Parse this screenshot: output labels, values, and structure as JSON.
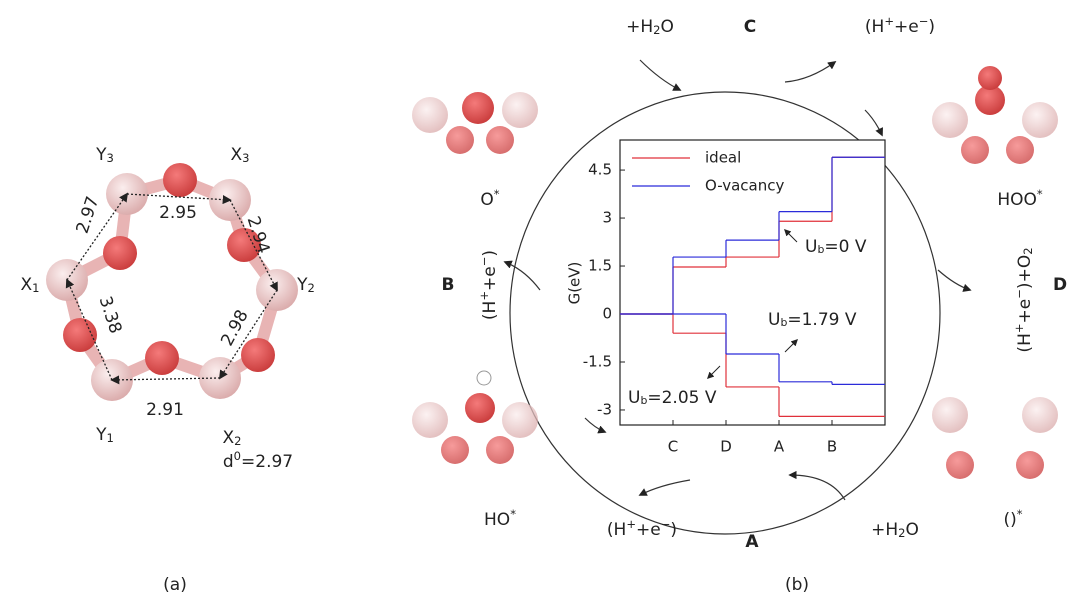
{
  "panel_a": {
    "label": "(a)",
    "atoms": [
      [
        {
          "text": "Y"
        },
        {
          "sub": "3"
        }
      ],
      [
        {
          "text": "X"
        },
        {
          "sub": "3"
        }
      ],
      [
        {
          "text": "X"
        },
        {
          "sub": "1"
        }
      ],
      [
        {
          "text": "Y"
        },
        {
          "sub": "2"
        }
      ],
      [
        {
          "text": "Y"
        },
        {
          "sub": "1"
        }
      ],
      [
        {
          "text": "X"
        },
        {
          "sub": "2"
        }
      ]
    ],
    "distances": [
      "2.97",
      "2.95",
      "2.94",
      "3.38",
      "2.98",
      "2.91"
    ],
    "d0": [
      {
        "text": "d"
      },
      {
        "sup": "0"
      },
      {
        "text": "=2.97"
      }
    ]
  },
  "panel_b": {
    "label": "(b)",
    "steps": [
      "C",
      "B",
      "D",
      "A"
    ],
    "species": [
      [
        {
          "text": "O"
        },
        {
          "sup": "*"
        }
      ],
      [
        {
          "text": "HOO"
        },
        {
          "sup": "*"
        }
      ],
      [
        {
          "text": "HO"
        },
        {
          "sup": "*"
        }
      ],
      [
        {
          "text": "()"
        },
        {
          "sup": "*"
        }
      ]
    ],
    "reactants": [
      [
        {
          "text": "+H"
        },
        {
          "sub": "2"
        },
        {
          "text": "O"
        }
      ],
      [
        {
          "text": "(H"
        },
        {
          "sup": "+"
        },
        {
          "text": "+e"
        },
        {
          "sup": "−"
        },
        {
          "text": ")"
        }
      ],
      [
        {
          "text": "(H"
        },
        {
          "sup": "+"
        },
        {
          "text": "+e"
        },
        {
          "sup": "−"
        },
        {
          "text": ")"
        }
      ],
      [
        {
          "text": "(H"
        },
        {
          "sup": "+"
        },
        {
          "text": "+e"
        },
        {
          "sup": "−"
        },
        {
          "text": ")+O"
        },
        {
          "sub": "2"
        }
      ],
      [
        {
          "text": "(H"
        },
        {
          "sup": "+"
        },
        {
          "text": "+e"
        },
        {
          "sup": "−"
        },
        {
          "text": ")"
        }
      ],
      [
        {
          "text": "+H"
        },
        {
          "sub": "2"
        },
        {
          "text": "O"
        }
      ]
    ]
  },
  "chart_data": {
    "type": "step",
    "ylabel": "G(eV)",
    "x": [
      0,
      1,
      2,
      3,
      4
    ],
    "xlim": [
      0,
      5
    ],
    "xticks": [
      {
        "value": 1,
        "label": "C"
      },
      {
        "value": 2,
        "label": "D"
      },
      {
        "value": 3,
        "label": "A"
      },
      {
        "value": 4,
        "label": "B"
      }
    ],
    "ylim": [
      -3.47,
      5.44
    ],
    "yticks": [
      4.5,
      3,
      1.5,
      0,
      -1.5,
      -3
    ],
    "series": [
      {
        "name": "ideal",
        "color": "#e0303a",
        "values": [
          0,
          1.47,
          1.78,
          2.9,
          4.9
        ]
      },
      {
        "name": "O-vacancy",
        "color": "#2b2bd9",
        "values": [
          0,
          1.78,
          2.31,
          3.2,
          4.9
        ]
      }
    ],
    "shifted_series": [
      {
        "color": "#e0303a",
        "values": [
          0,
          -0.6,
          -2.28,
          -3.2,
          -3.2
        ]
      },
      {
        "color": "#2b2bd9",
        "values": [
          0,
          0,
          -1.25,
          -2.12,
          -2.2
        ]
      }
    ],
    "annotations": [
      [
        {
          "text": "U"
        },
        {
          "sub": "b"
        },
        {
          "text": "=0 V"
        }
      ],
      [
        {
          "text": "U"
        },
        {
          "sub": "b"
        },
        {
          "text": "=1.79 V"
        }
      ],
      [
        {
          "text": "U"
        },
        {
          "sub": "b"
        },
        {
          "text": "=2.05 V"
        }
      ]
    ]
  }
}
